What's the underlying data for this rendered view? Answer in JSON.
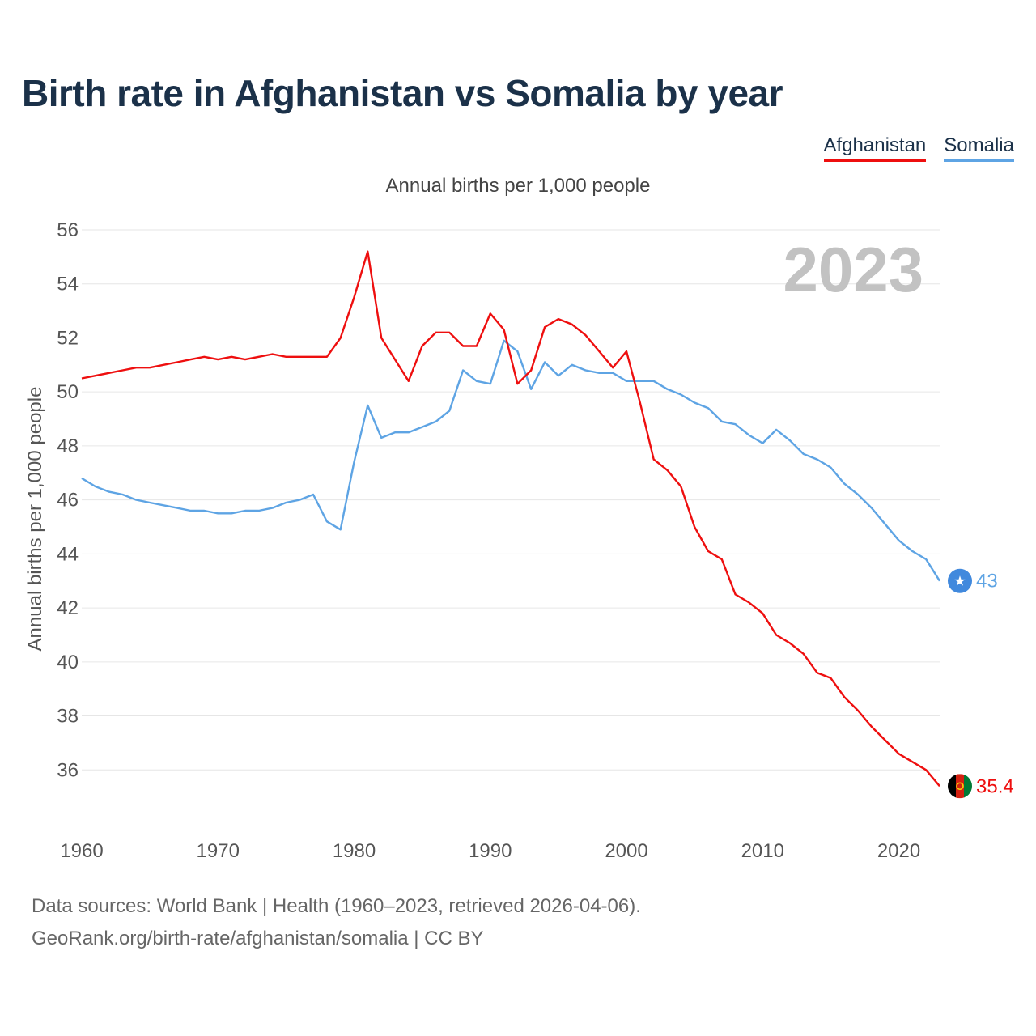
{
  "title": "Birth rate in Afghanistan vs Somalia by year",
  "legend": [
    {
      "name": "Afghanistan",
      "color": "#ee0f0f"
    },
    {
      "name": "Somalia",
      "color": "#5ea4e4"
    }
  ],
  "footer": {
    "sources": "Data sources: World Bank | Health (1960–2023, retrieved 2026-04-06).",
    "link": "GeoRank.org/birth-rate/afghanistan/somalia | CC BY"
  },
  "chart_data": {
    "type": "line",
    "title": "Annual births per 1,000 people",
    "ylabel": "Annual births per 1,000 people",
    "xlabel": "",
    "year_label": "2023",
    "ylim": [
      34,
      56
    ],
    "xlim": [
      1960,
      2023
    ],
    "yticks": [
      36,
      38,
      40,
      42,
      44,
      46,
      48,
      50,
      52,
      54,
      56
    ],
    "xticks": [
      1960,
      1970,
      1980,
      1990,
      2000,
      2010,
      2020
    ],
    "grid": true,
    "x": [
      1960,
      1961,
      1962,
      1963,
      1964,
      1965,
      1966,
      1967,
      1968,
      1969,
      1970,
      1971,
      1972,
      1973,
      1974,
      1975,
      1976,
      1977,
      1978,
      1979,
      1980,
      1981,
      1982,
      1983,
      1984,
      1985,
      1986,
      1987,
      1988,
      1989,
      1990,
      1991,
      1992,
      1993,
      1994,
      1995,
      1996,
      1997,
      1998,
      1999,
      2000,
      2001,
      2002,
      2003,
      2004,
      2005,
      2006,
      2007,
      2008,
      2009,
      2010,
      2011,
      2012,
      2013,
      2014,
      2015,
      2016,
      2017,
      2018,
      2019,
      2020,
      2021,
      2022,
      2023
    ],
    "series": [
      {
        "name": "Afghanistan",
        "color": "#ee0f0f",
        "end_label": "35.4",
        "values": [
          50.5,
          50.6,
          50.7,
          50.8,
          50.9,
          50.9,
          51.0,
          51.1,
          51.2,
          51.3,
          51.2,
          51.3,
          51.2,
          51.3,
          51.4,
          51.3,
          51.3,
          51.3,
          51.3,
          52.0,
          53.5,
          55.2,
          52.0,
          51.2,
          50.4,
          51.7,
          52.2,
          52.2,
          51.7,
          51.7,
          52.9,
          52.3,
          50.3,
          50.8,
          52.4,
          52.7,
          52.5,
          52.1,
          51.5,
          50.9,
          51.5,
          49.6,
          47.5,
          47.1,
          46.5,
          45.0,
          44.1,
          43.8,
          42.5,
          42.2,
          41.8,
          41.0,
          40.7,
          40.3,
          39.6,
          39.4,
          38.7,
          38.2,
          37.6,
          37.1,
          36.6,
          36.3,
          36.0,
          35.4
        ]
      },
      {
        "name": "Somalia",
        "color": "#5ea4e4",
        "end_label": "43",
        "values": [
          46.8,
          46.5,
          46.3,
          46.2,
          46.0,
          45.9,
          45.8,
          45.7,
          45.6,
          45.6,
          45.5,
          45.5,
          45.6,
          45.6,
          45.7,
          45.9,
          46.0,
          46.2,
          45.2,
          44.9,
          47.4,
          49.5,
          48.3,
          48.5,
          48.5,
          48.7,
          48.9,
          49.3,
          50.8,
          50.4,
          50.3,
          51.9,
          51.5,
          50.1,
          51.1,
          50.6,
          51.0,
          50.8,
          50.7,
          50.7,
          50.4,
          50.4,
          50.4,
          50.1,
          49.9,
          49.6,
          49.4,
          48.9,
          48.8,
          48.4,
          48.1,
          48.6,
          48.2,
          47.7,
          47.5,
          47.2,
          46.6,
          46.2,
          45.7,
          45.1,
          44.5,
          44.1,
          43.8,
          43.0
        ]
      }
    ]
  }
}
